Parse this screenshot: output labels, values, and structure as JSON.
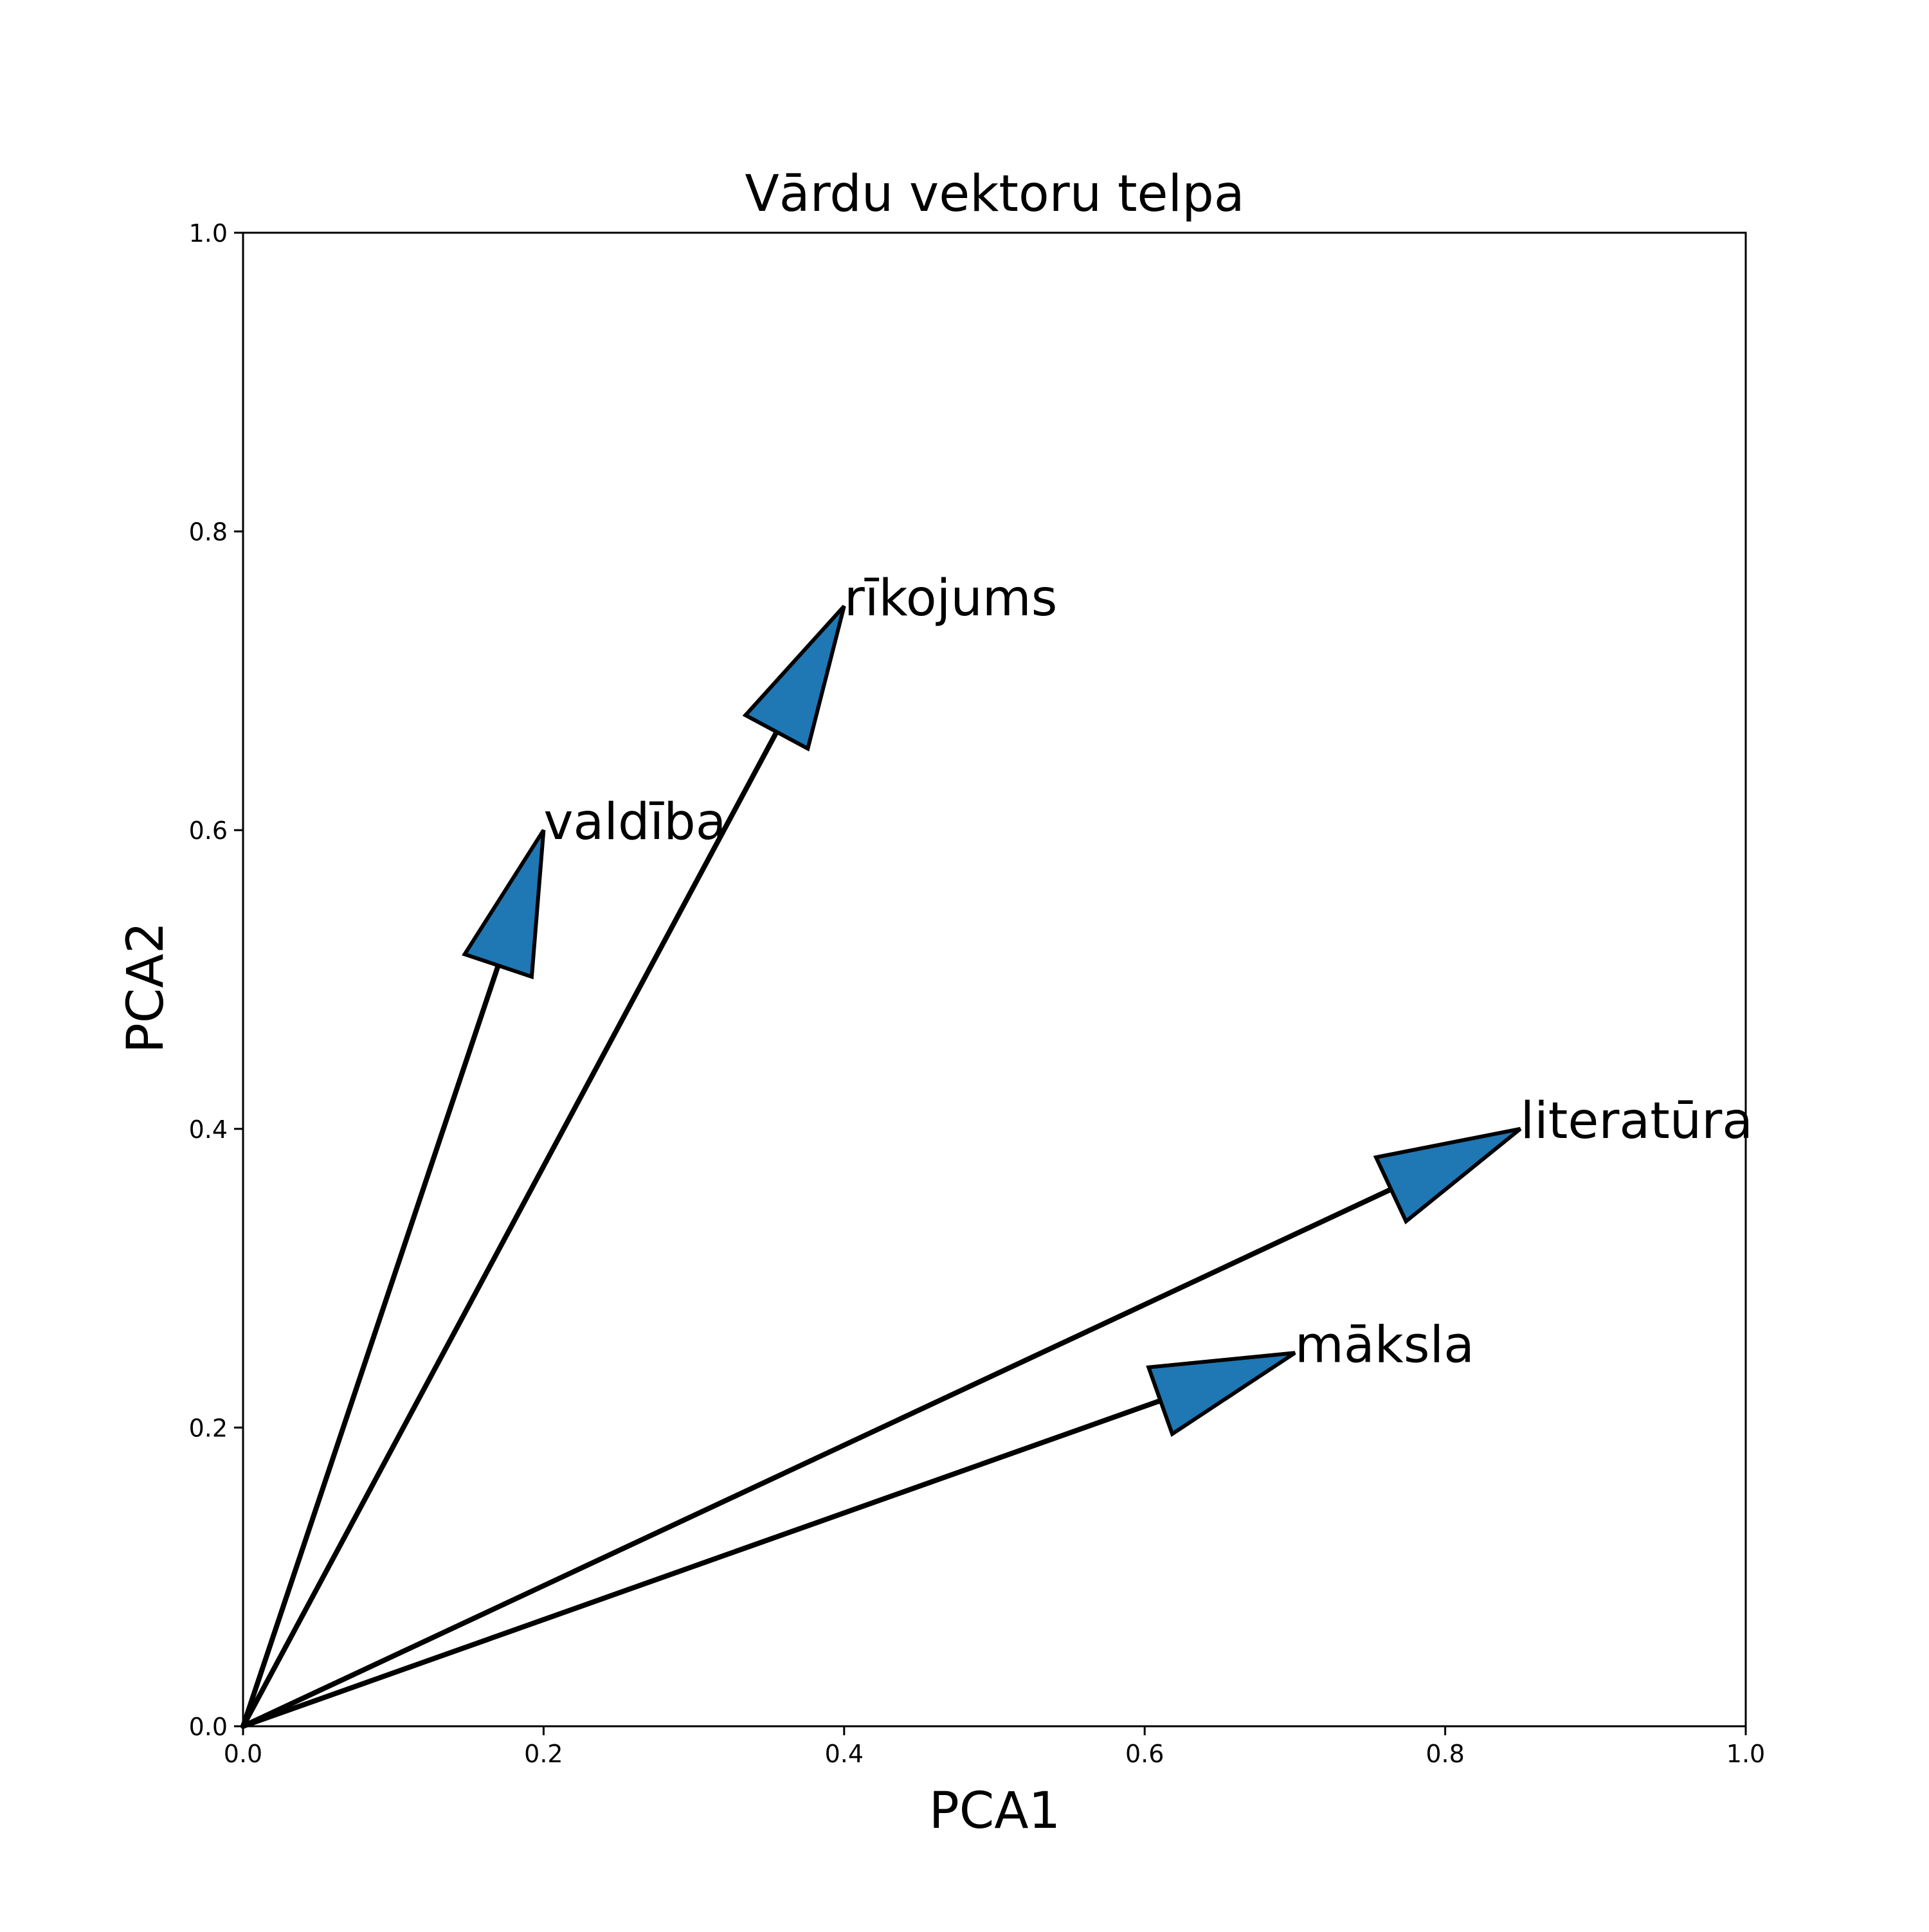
{
  "chart_data": {
    "type": "vector",
    "title": "Vārdu vektoru telpa",
    "xlabel": "PCA1",
    "ylabel": "PCA2",
    "xlim": [
      0.0,
      1.0
    ],
    "ylim": [
      0.0,
      1.0
    ],
    "xticks": [
      "0.0",
      "0.2",
      "0.4",
      "0.6",
      "0.8",
      "1.0"
    ],
    "yticks": [
      "0.0",
      "0.2",
      "0.4",
      "0.6",
      "0.8",
      "1.0"
    ],
    "grid": false,
    "arrow_color": "#1f77b4",
    "line_color": "#000000",
    "vectors": [
      {
        "label": "valdība",
        "x": 0.2,
        "y": 0.6
      },
      {
        "label": "rīkojums",
        "x": 0.4,
        "y": 0.75
      },
      {
        "label": "literatūra",
        "x": 0.85,
        "y": 0.4
      },
      {
        "label": "māksla",
        "x": 0.7,
        "y": 0.25
      }
    ]
  }
}
